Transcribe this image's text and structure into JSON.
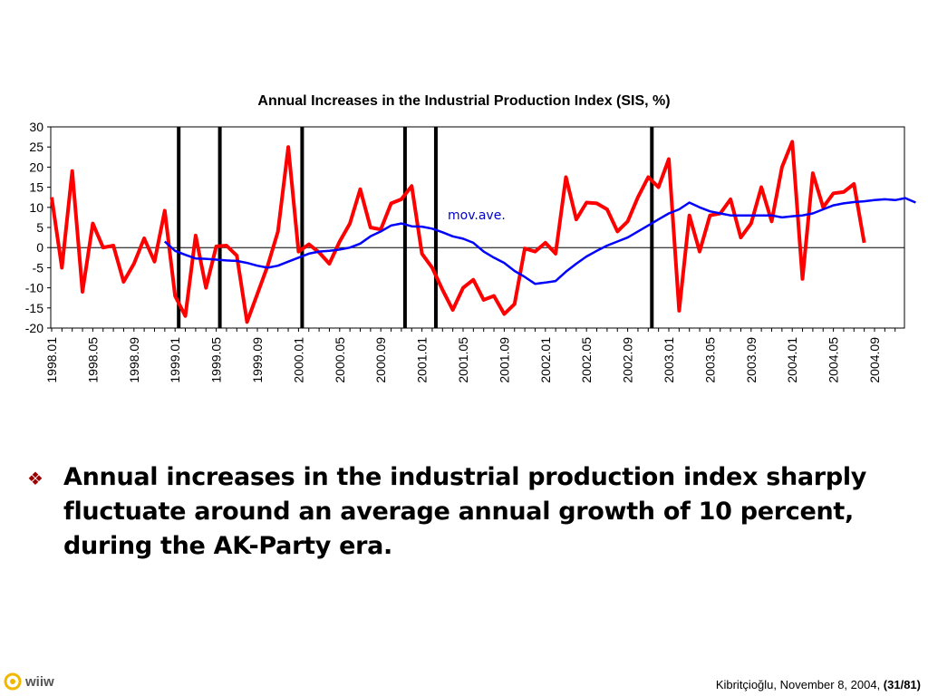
{
  "chart_data": {
    "type": "line",
    "title": "Annual Increases in the Industrial Production Index (SIS, %)",
    "xlabel": "",
    "ylabel": "",
    "ylim": [
      -20,
      30
    ],
    "yticks": [
      "30",
      "25",
      "20",
      "15",
      "10",
      "5",
      "0",
      "-5",
      "-10",
      "-15",
      "-20"
    ],
    "x_tick_labels": [
      "1998.01",
      "1998.05",
      "1998.09",
      "1999.01",
      "1999.05",
      "1999.09",
      "2000.01",
      "2000.05",
      "2000.09",
      "2001.01",
      "2001.05",
      "2001.09",
      "2002.01",
      "2002.05",
      "2002.09",
      "2003.01",
      "2003.05",
      "2003.09",
      "2004.01",
      "2004.05",
      "2004.09"
    ],
    "annotation": "mov.ave.",
    "vertical_markers_month_index": [
      12,
      16,
      24,
      34,
      37,
      58
    ],
    "legend": "none",
    "grid": false,
    "series": [
      {
        "color": "#ff0000",
        "values": [
          12.5,
          -5,
          19,
          -11,
          6,
          0,
          0.5,
          -8.5,
          -4,
          2.3,
          -3.5,
          9.2,
          -12,
          -17,
          3,
          -10,
          0.3,
          0.5,
          -2,
          -18.5,
          -11.5,
          -4.5,
          4,
          25,
          -1,
          0.8,
          -1.2,
          -4,
          1.5,
          6,
          14.5,
          5,
          4.5,
          11,
          12,
          15.3,
          -1.5,
          -5,
          -10.5,
          -15.5,
          -10,
          -8,
          -13,
          -12,
          -16.5,
          -14,
          -0.2,
          -1,
          1.2,
          -1.5,
          17.5,
          7,
          11.2,
          11,
          9.5,
          4,
          6.5,
          12.5,
          17.5,
          15,
          22,
          -15.7,
          8,
          -1,
          8,
          8.5,
          12,
          2.5,
          6,
          15,
          6.5,
          20,
          26.3,
          -7.8,
          18.5,
          10,
          13.5,
          13.8,
          15.8,
          1.2
        ]
      },
      {
        "color": "#0000ff",
        "start_index": 11,
        "values": [
          1.5,
          -0.8,
          -1.8,
          -2.7,
          -2.8,
          -3,
          -3.2,
          -3.3,
          -3.8,
          -4.5,
          -5,
          -4.5,
          -3.5,
          -2.5,
          -1.5,
          -1,
          -0.8,
          -0.5,
          0,
          1,
          2.8,
          4,
          5.5,
          6,
          5.3,
          5.2,
          4.7,
          3.8,
          2.8,
          2.2,
          1.2,
          -1,
          -2.5,
          -3.8,
          -5.8,
          -7.3,
          -9,
          -8.7,
          -8.3,
          -6,
          -4,
          -2.2,
          -0.8,
          0.5,
          1.5,
          2.5,
          4,
          5.5,
          7,
          8.5,
          9.5,
          11.2,
          10,
          9,
          8.5,
          8,
          8,
          8,
          8,
          8,
          7.5,
          7.8,
          8,
          8.5,
          9.5,
          10.5,
          11,
          11.3,
          11.5,
          11.8,
          12,
          11.8,
          12.3,
          11.2
        ]
      }
    ]
  },
  "bullet": {
    "icon": "diamond-bullet-icon",
    "text": "Annual increases in the industrial production index sharply fluctuate around an average annual growth of 10 percent, during the AK-Party era."
  },
  "logo": {
    "text": "wiiw"
  },
  "footer": {
    "text": "Kibritçioğlu, November 8, 2004, ",
    "page": "(31/81)"
  }
}
